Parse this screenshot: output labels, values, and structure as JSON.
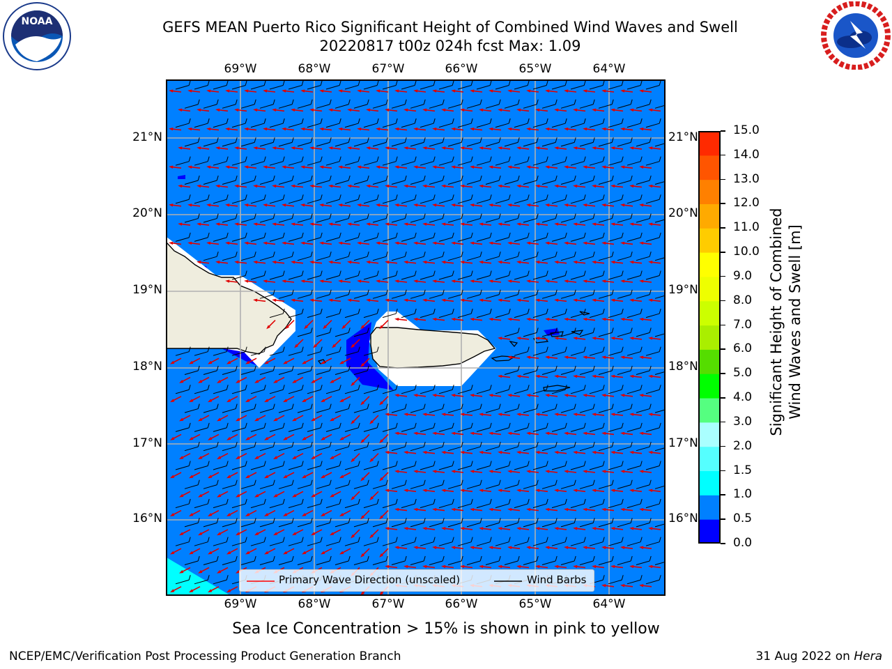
{
  "title": {
    "line1": "GEFS MEAN Puerto Rico Significant Height of Combined Wind Waves and Swell",
    "line2": "20220817 t00z 024h fcst   Max: 1.09"
  },
  "logos": {
    "left": {
      "name": "NOAA",
      "ring_text": "NATIONAL OCEANIC AND ATMOSPHERIC ADMINISTRATION · U.S. DEPARTMENT OF COMMERCE"
    },
    "right": {
      "name": "NATIONAL WEATHER SERVICE"
    }
  },
  "map": {
    "lon_labels": [
      "69°W",
      "68°W",
      "67°W",
      "66°W",
      "65°W",
      "64°W"
    ],
    "lat_labels": [
      "21°N",
      "20°N",
      "19°N",
      "18°N",
      "17°N",
      "16°N"
    ],
    "ocean_color": "#0080ff",
    "low_color": "#0000ff",
    "cyan_color": "#00ffff",
    "land_color": "#efedde",
    "legend": {
      "wave_label": "Primary Wave Direction (unscaled)",
      "wind_label": "Wind Barbs",
      "wave_color": "#ff0000",
      "wind_color": "#000000"
    }
  },
  "colorbar": {
    "label_line1": "Significant Height of Combined",
    "label_line2": "Wind Waves and Swell [m]",
    "ticks": [
      "0.0",
      "0.5",
      "1.0",
      "1.5",
      "2.0",
      "3.0",
      "4.0",
      "5.0",
      "6.0",
      "7.0",
      "8.0",
      "9.0",
      "10.0",
      "11.0",
      "12.0",
      "13.0",
      "14.0",
      "15.0"
    ],
    "colors": [
      "#0000ff",
      "#0080ff",
      "#00ffff",
      "#55ffff",
      "#aaffff",
      "#55ff80",
      "#00ff00",
      "#55dd00",
      "#aaee00",
      "#ccff00",
      "#eeff00",
      "#ffff00",
      "#ffcc00",
      "#ffaa00",
      "#ff8000",
      "#ff5500",
      "#ff2a00"
    ]
  },
  "subtitle": "Sea Ice Concentration > 15% is shown in pink to yellow",
  "footer": {
    "left": "NCEP/EMC/Verification Post Processing Product Generation Branch",
    "date": "31 Aug 2022 on ",
    "machine": "Hera"
  }
}
